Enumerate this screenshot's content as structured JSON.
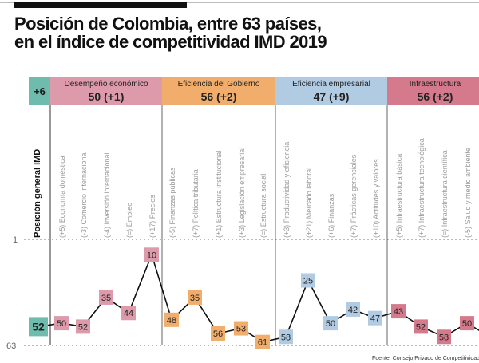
{
  "title_line1": "Posición de Colombia, entre 63 países,",
  "title_line2": "en el índice de competitividad IMD 2019",
  "source": "Fuente: Consejo Privado de Competitividad",
  "chart_data": {
    "type": "line",
    "ylabel": "Posición general IMD",
    "ylim": [
      63,
      1
    ],
    "yticks": [
      "1",
      "63"
    ],
    "grid": "dotted lines at 1 and 63",
    "overall": {
      "value": 52,
      "change": "+6",
      "color": "#6fbcae"
    },
    "groups": [
      {
        "name": "Desempeño económico",
        "score": "50 (+1)",
        "color": "#dc9aab",
        "items": [
          {
            "change": "(+5)",
            "label": "Economía doméstica",
            "value": 50
          },
          {
            "change": "(-3)",
            "label": "Comercio internacional",
            "value": 52
          },
          {
            "change": "(-4)",
            "label": "Inversión internacional",
            "value": 35
          },
          {
            "change": "(=)",
            "label": "Empleo",
            "value": 44
          },
          {
            "change": "(+17)",
            "label": "Precios",
            "value": 10
          }
        ]
      },
      {
        "name": "Eficiencia del Gobierno",
        "score": "56 (+2)",
        "color": "#f0ad6c",
        "items": [
          {
            "change": "(-5)",
            "label": "Finanzas públicas",
            "value": 48
          },
          {
            "change": "(+7)",
            "label": "Política tributaria",
            "value": 35
          },
          {
            "change": "(+1)",
            "label": "Estructura institucional",
            "value": 56
          },
          {
            "change": "(+3)",
            "label": "Legislación empresarial",
            "value": 53
          },
          {
            "change": "(=)",
            "label": "Estructura social",
            "value": 61
          }
        ]
      },
      {
        "name": "Eficiencia empresarial",
        "score": "47 (+9)",
        "color": "#b1cbe2",
        "items": [
          {
            "change": "(+3)",
            "label": "Productividad y eficiencia",
            "value": 58
          },
          {
            "change": "(+21)",
            "label": "Mercado laboral",
            "value": 25
          },
          {
            "change": "(+6)",
            "label": "Finanzas",
            "value": 50
          },
          {
            "change": "(+7)",
            "label": "Prácticas gerenciales",
            "value": 42
          },
          {
            "change": "(+10)",
            "label": "Actitudes y valores",
            "value": 47
          }
        ]
      },
      {
        "name": "Infraestructura",
        "score": "56 (+2)",
        "color": "#d57a8c",
        "items": [
          {
            "change": "(+5)",
            "label": "Infraestructura básica",
            "value": 43
          },
          {
            "change": "(+7)",
            "label": "Infraestructura tecnológica",
            "value": 52
          },
          {
            "change": "(=)",
            "label": "Infraestructura científica",
            "value": 58
          },
          {
            "change": "(-5)",
            "label": "Salud y medio ambiente",
            "value": 50
          }
        ]
      }
    ]
  }
}
